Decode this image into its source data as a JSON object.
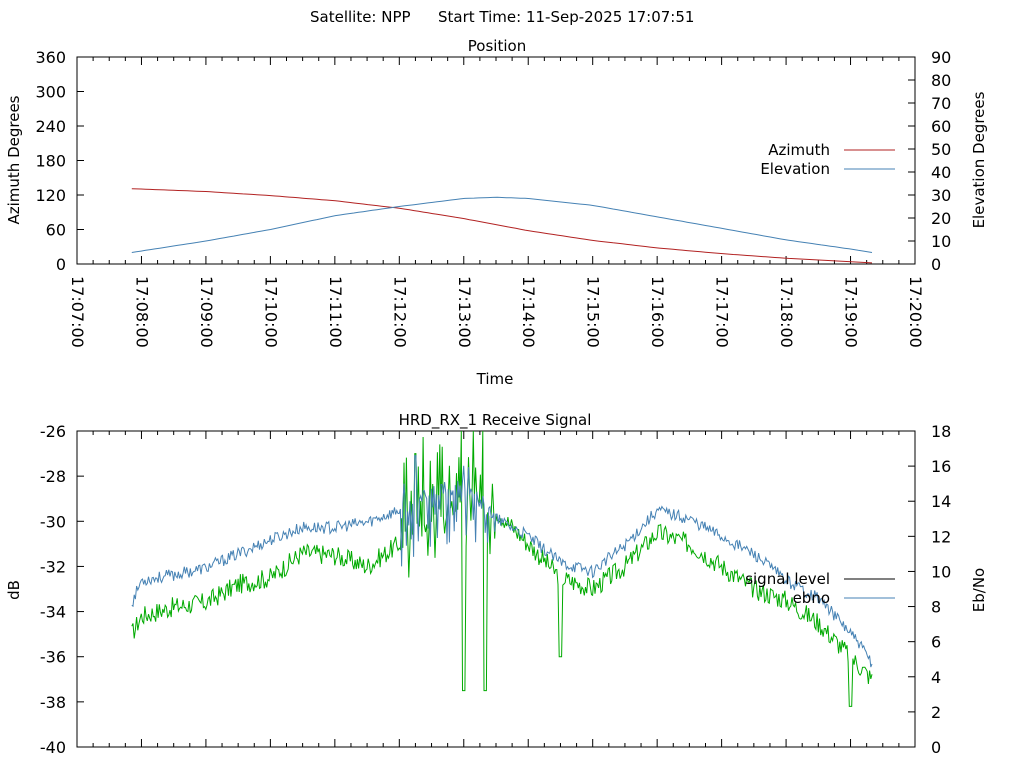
{
  "header": {
    "satellite": "Satellite: NPP",
    "start_time": "Start Time: 11-Sep-2025 17:07:51"
  },
  "chart_data": [
    {
      "type": "line",
      "title": "Position",
      "xlabel": "Time",
      "ylabel": "Azimuth Degrees",
      "y2label": "Elevation Degrees",
      "xlim": [
        "17:07:00",
        "17:20:00"
      ],
      "ylim": [
        0,
        360
      ],
      "y2lim": [
        0,
        90
      ],
      "x_ticks": [
        "17:07:00",
        "17:08:00",
        "17:09:00",
        "17:10:00",
        "17:11:00",
        "17:12:00",
        "17:13:00",
        "17:14:00",
        "17:15:00",
        "17:16:00",
        "17:17:00",
        "17:18:00",
        "17:19:00",
        "17:20:00"
      ],
      "y_ticks": [
        0,
        60,
        120,
        180,
        240,
        300,
        360
      ],
      "y2_ticks": [
        0,
        10,
        20,
        30,
        40,
        50,
        60,
        70,
        80,
        90
      ],
      "legend_position": "right",
      "grid": false,
      "series": [
        {
          "name": "Azimuth",
          "axis": "y",
          "color": "#b22222",
          "x": [
            "17:07:51",
            "17:09:00",
            "17:10:00",
            "17:11:00",
            "17:12:00",
            "17:13:00",
            "17:14:00",
            "17:15:00",
            "17:16:00",
            "17:17:00",
            "17:18:00",
            "17:19:00",
            "17:19:20"
          ],
          "values": [
            131,
            126,
            119,
            110,
            97,
            79,
            58,
            41,
            28,
            18,
            10,
            4,
            2
          ]
        },
        {
          "name": "Elevation",
          "axis": "y2",
          "color": "#4682b4",
          "x": [
            "17:07:51",
            "17:09:00",
            "17:10:00",
            "17:11:00",
            "17:12:00",
            "17:13:00",
            "17:13:30",
            "17:14:00",
            "17:15:00",
            "17:16:00",
            "17:17:00",
            "17:18:00",
            "17:19:00",
            "17:19:20"
          ],
          "values": [
            5,
            10,
            15,
            21,
            25,
            28.5,
            29,
            28.5,
            25.5,
            20.5,
            15.5,
            10.5,
            6.5,
            5
          ]
        }
      ]
    },
    {
      "type": "line",
      "title": "HRD_RX_1 Receive Signal",
      "xlabel": "",
      "ylabel": "dB",
      "y2label": "Eb/No",
      "xlim": [
        "17:07:00",
        "17:20:00"
      ],
      "ylim": [
        -40,
        -26
      ],
      "y2lim": [
        0,
        18
      ],
      "y_ticks": [
        -40,
        -38,
        -36,
        -34,
        -32,
        -30,
        -28,
        -26
      ],
      "y2_ticks": [
        0,
        2,
        4,
        6,
        8,
        10,
        12,
        14,
        16,
        18
      ],
      "legend_position": "right",
      "grid": false,
      "series": [
        {
          "name": "signal level",
          "axis": "y",
          "color": "#00aa00",
          "x": [
            "17:07:51",
            "17:08:00",
            "17:08:30",
            "17:09:00",
            "17:09:30",
            "17:10:00",
            "17:10:30",
            "17:11:00",
            "17:11:30",
            "17:12:00",
            "17:12:30",
            "17:13:00",
            "17:13:30",
            "17:14:00",
            "17:14:30",
            "17:15:00",
            "17:15:30",
            "17:16:00",
            "17:16:30",
            "17:17:00",
            "17:17:30",
            "17:18:00",
            "17:18:30",
            "17:19:00",
            "17:19:20"
          ],
          "values": [
            -35.0,
            -34.2,
            -33.8,
            -33.6,
            -32.8,
            -32.5,
            -31.4,
            -31.5,
            -32.0,
            -31.0,
            -30.0,
            -29.0,
            -29.5,
            -31.0,
            -32.5,
            -33.0,
            -32.0,
            -30.5,
            -31.0,
            -32.0,
            -33.0,
            -33.5,
            -34.5,
            -36.0,
            -37.0
          ],
          "spikes": [
            [
              "17:12:15",
              -27.0
            ],
            [
              "17:13:00",
              -37.5
            ],
            [
              "17:13:20",
              -37.5
            ],
            [
              "17:14:30",
              -36.0
            ],
            [
              "17:19:00",
              -38.2
            ]
          ]
        },
        {
          "name": "ebno",
          "axis": "y2",
          "color": "#4682b4",
          "x": [
            "17:07:51",
            "17:08:00",
            "17:08:30",
            "17:09:00",
            "17:09:30",
            "17:10:00",
            "17:10:30",
            "17:11:00",
            "17:11:30",
            "17:12:00",
            "17:12:30",
            "17:13:00",
            "17:13:30",
            "17:14:00",
            "17:14:30",
            "17:15:00",
            "17:15:30",
            "17:16:00",
            "17:16:30",
            "17:17:00",
            "17:17:30",
            "17:18:00",
            "17:18:30",
            "17:19:00",
            "17:19:20"
          ],
          "values": [
            8.2,
            9.5,
            9.8,
            10.2,
            11.0,
            11.8,
            12.5,
            12.5,
            12.8,
            13.5,
            14.5,
            15.0,
            13.0,
            12.0,
            10.5,
            10.0,
            11.5,
            13.5,
            13.0,
            12.0,
            11.0,
            9.5,
            8.5,
            6.5,
            4.8
          ],
          "spikes": [
            [
              "17:12:15",
              16.6
            ]
          ]
        }
      ]
    }
  ]
}
